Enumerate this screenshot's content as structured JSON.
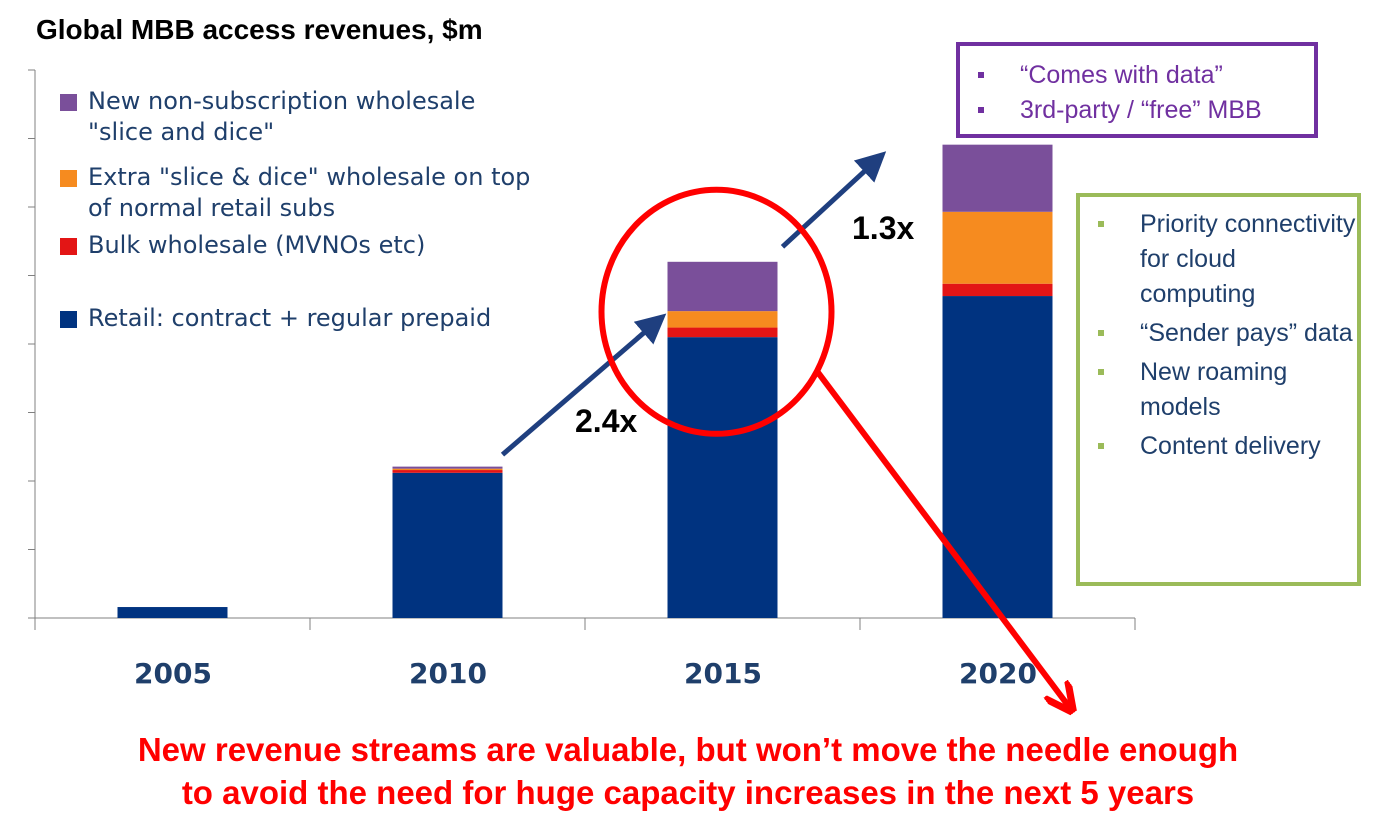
{
  "chart_data": {
    "type": "bar",
    "stacked": true,
    "title": "Global MBB access revenues, $m",
    "categories": [
      "2005",
      "2010",
      "2015",
      "2020"
    ],
    "series": [
      {
        "name": "Retail: contract + regular prepaid",
        "color": "#003380",
        "values": [
          1.6,
          21.2,
          41.0,
          47.0
        ]
      },
      {
        "name": "Bulk wholesale (MVNOs etc)",
        "color": "#e31515",
        "values": [
          0,
          0.4,
          1.4,
          1.8
        ]
      },
      {
        "name": "Extra \"slice & dice\" wholesale on top of normal retail subs",
        "color": "#f68b1f",
        "values": [
          0,
          0.2,
          2.4,
          10.5
        ]
      },
      {
        "name": "New non-subscription wholesale \"slice and dice\"",
        "color": "#7a4f9a",
        "values": [
          0,
          0.3,
          7.2,
          9.8
        ]
      }
    ],
    "ylim": [
      0,
      80
    ],
    "ytick_step": 10,
    "grid": false,
    "legend_position": "top-left",
    "annotations": {
      "growth_2010_2015": "2.4x",
      "growth_2015_2020": "1.3x"
    }
  },
  "legend_order": [
    3,
    2,
    1,
    0
  ],
  "callouts": {
    "purple_box": {
      "color": "#7030a0",
      "items": [
        "“Comes with data”",
        "3rd-party / “free” MBB"
      ]
    },
    "green_box": {
      "color": "#9bbb59",
      "items": [
        "Priority connectivity for cloud computing",
        "“Sender pays” data",
        "New roaming models",
        "Content delivery"
      ]
    }
  },
  "footer_text_line1": "New revenue streams are valuable, but won’t move the needle enough",
  "footer_text_line2": "to avoid the need for huge capacity increases in the next 5 years",
  "colors": {
    "arrow_blue": "#1f3f7f",
    "highlight_red": "#ff0000",
    "axis_gray": "#808080",
    "text_navy": "#1f3f6b"
  }
}
